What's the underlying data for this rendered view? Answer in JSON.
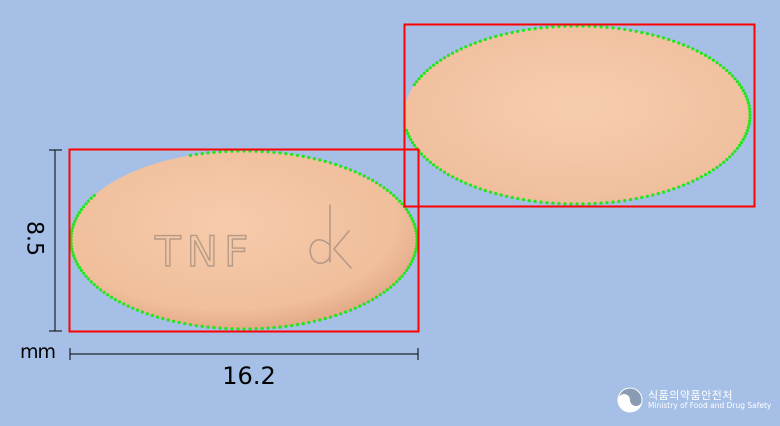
{
  "image": {
    "front_imprint": "TNF",
    "front_imprint_symbol": "dk",
    "back_imprint": ""
  },
  "dimensions": {
    "height_value": "8.5",
    "width_value": "16.2",
    "unit": "mm"
  },
  "logo": {
    "name_korean": "식품의약품안전처",
    "name_english": "Ministry of Food and Drug Safety"
  },
  "colors": {
    "background": "#a5bfe6",
    "pill": "#f3c4a2",
    "pill_shadow": "#d89a78",
    "box_outline": "#ff0000",
    "contour_dots": "#22e51c",
    "imprint": "#b79a86"
  }
}
